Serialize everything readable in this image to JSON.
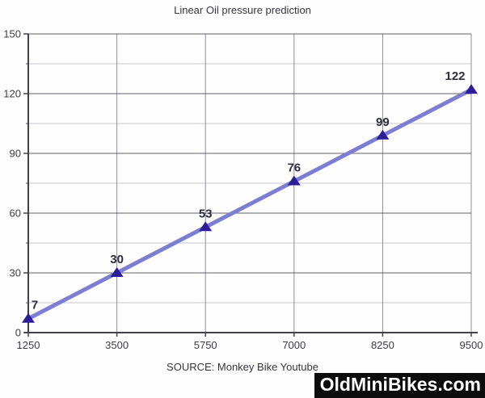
{
  "title": "Linear Oil pressure prediction",
  "source": "SOURCE: Monkey Bike Youtube",
  "watermark": "OldMiniBikes.com",
  "colors": {
    "line": "#7b7ed2",
    "marker": "#2c1d99",
    "data_label": "#2e2e40",
    "title_text": "#34343f",
    "tick_label": "#3c3c46",
    "grid_major": "#60606e",
    "grid_minor": "#c6c6d0",
    "grid_vertical": "#8f8f9a",
    "axis": "#42424e",
    "watermark_bg": "#0c0c0c",
    "watermark_text": "#ffffff"
  },
  "chart_data": {
    "type": "line",
    "title": "Linear Oil pressure prediction",
    "categories": [
      "1250",
      "3500",
      "5750",
      "7000",
      "8250",
      "9500"
    ],
    "values": [
      7,
      30,
      53,
      76,
      99,
      122
    ],
    "data_labels": [
      "7",
      "30",
      "53",
      "76",
      "99",
      "122"
    ],
    "xlabel": "",
    "ylabel": "",
    "ylim": [
      0,
      150
    ],
    "y_ticks": [
      0,
      30,
      60,
      90,
      120,
      150
    ],
    "y_major_step": 30,
    "y_minor_step": 15,
    "grid": true,
    "legend": false,
    "marker_shape": "triangle-up",
    "source": "SOURCE: Monkey Bike Youtube"
  }
}
